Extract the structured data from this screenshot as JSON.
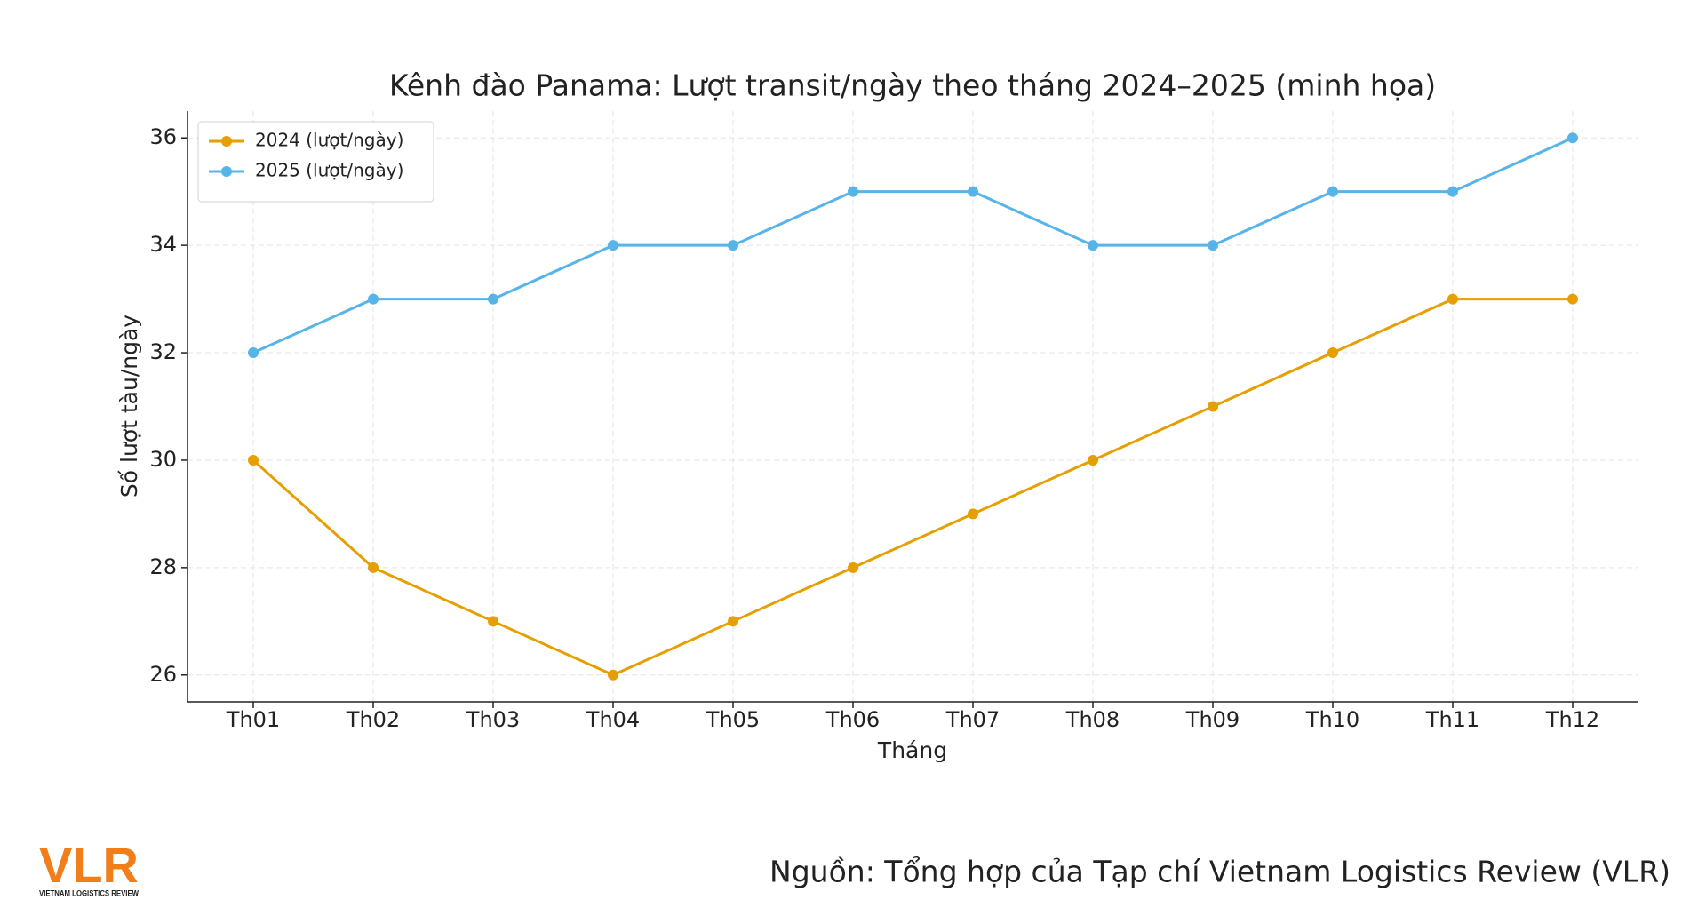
{
  "chart_data": {
    "type": "line",
    "title": "Kênh đào Panama: Lượt transit/ngày theo tháng 2024–2025 (minh họa)",
    "x_label": "Tháng",
    "y_label": "Số lượt tàu/ngày",
    "categories": [
      "Th01",
      "Th02",
      "Th03",
      "Th04",
      "Th05",
      "Th06",
      "Th07",
      "Th08",
      "Th09",
      "Th10",
      "Th11",
      "Th12"
    ],
    "series": [
      {
        "name": "2024 (lượt/ngày)",
        "color": "#E69F00",
        "values": [
          30,
          28,
          27,
          26,
          27,
          28,
          29,
          30,
          31,
          32,
          33,
          33
        ]
      },
      {
        "name": "2025 (lượt/ngày)",
        "color": "#56B4E9",
        "values": [
          32,
          33,
          33,
          34,
          34,
          35,
          35,
          34,
          34,
          35,
          35,
          36
        ]
      }
    ],
    "ylim": [
      25.5,
      36.5
    ],
    "yticks": [
      26,
      28,
      30,
      32,
      34,
      36
    ],
    "grid": true,
    "legend": "upper left",
    "source": "Nguồn: Tổng hợp của Tạp chí Vietnam Logistics Review (VLR)",
    "logo": "VLR",
    "logo_subtitle": "VIETNAM LOGISTICS REVIEW"
  }
}
